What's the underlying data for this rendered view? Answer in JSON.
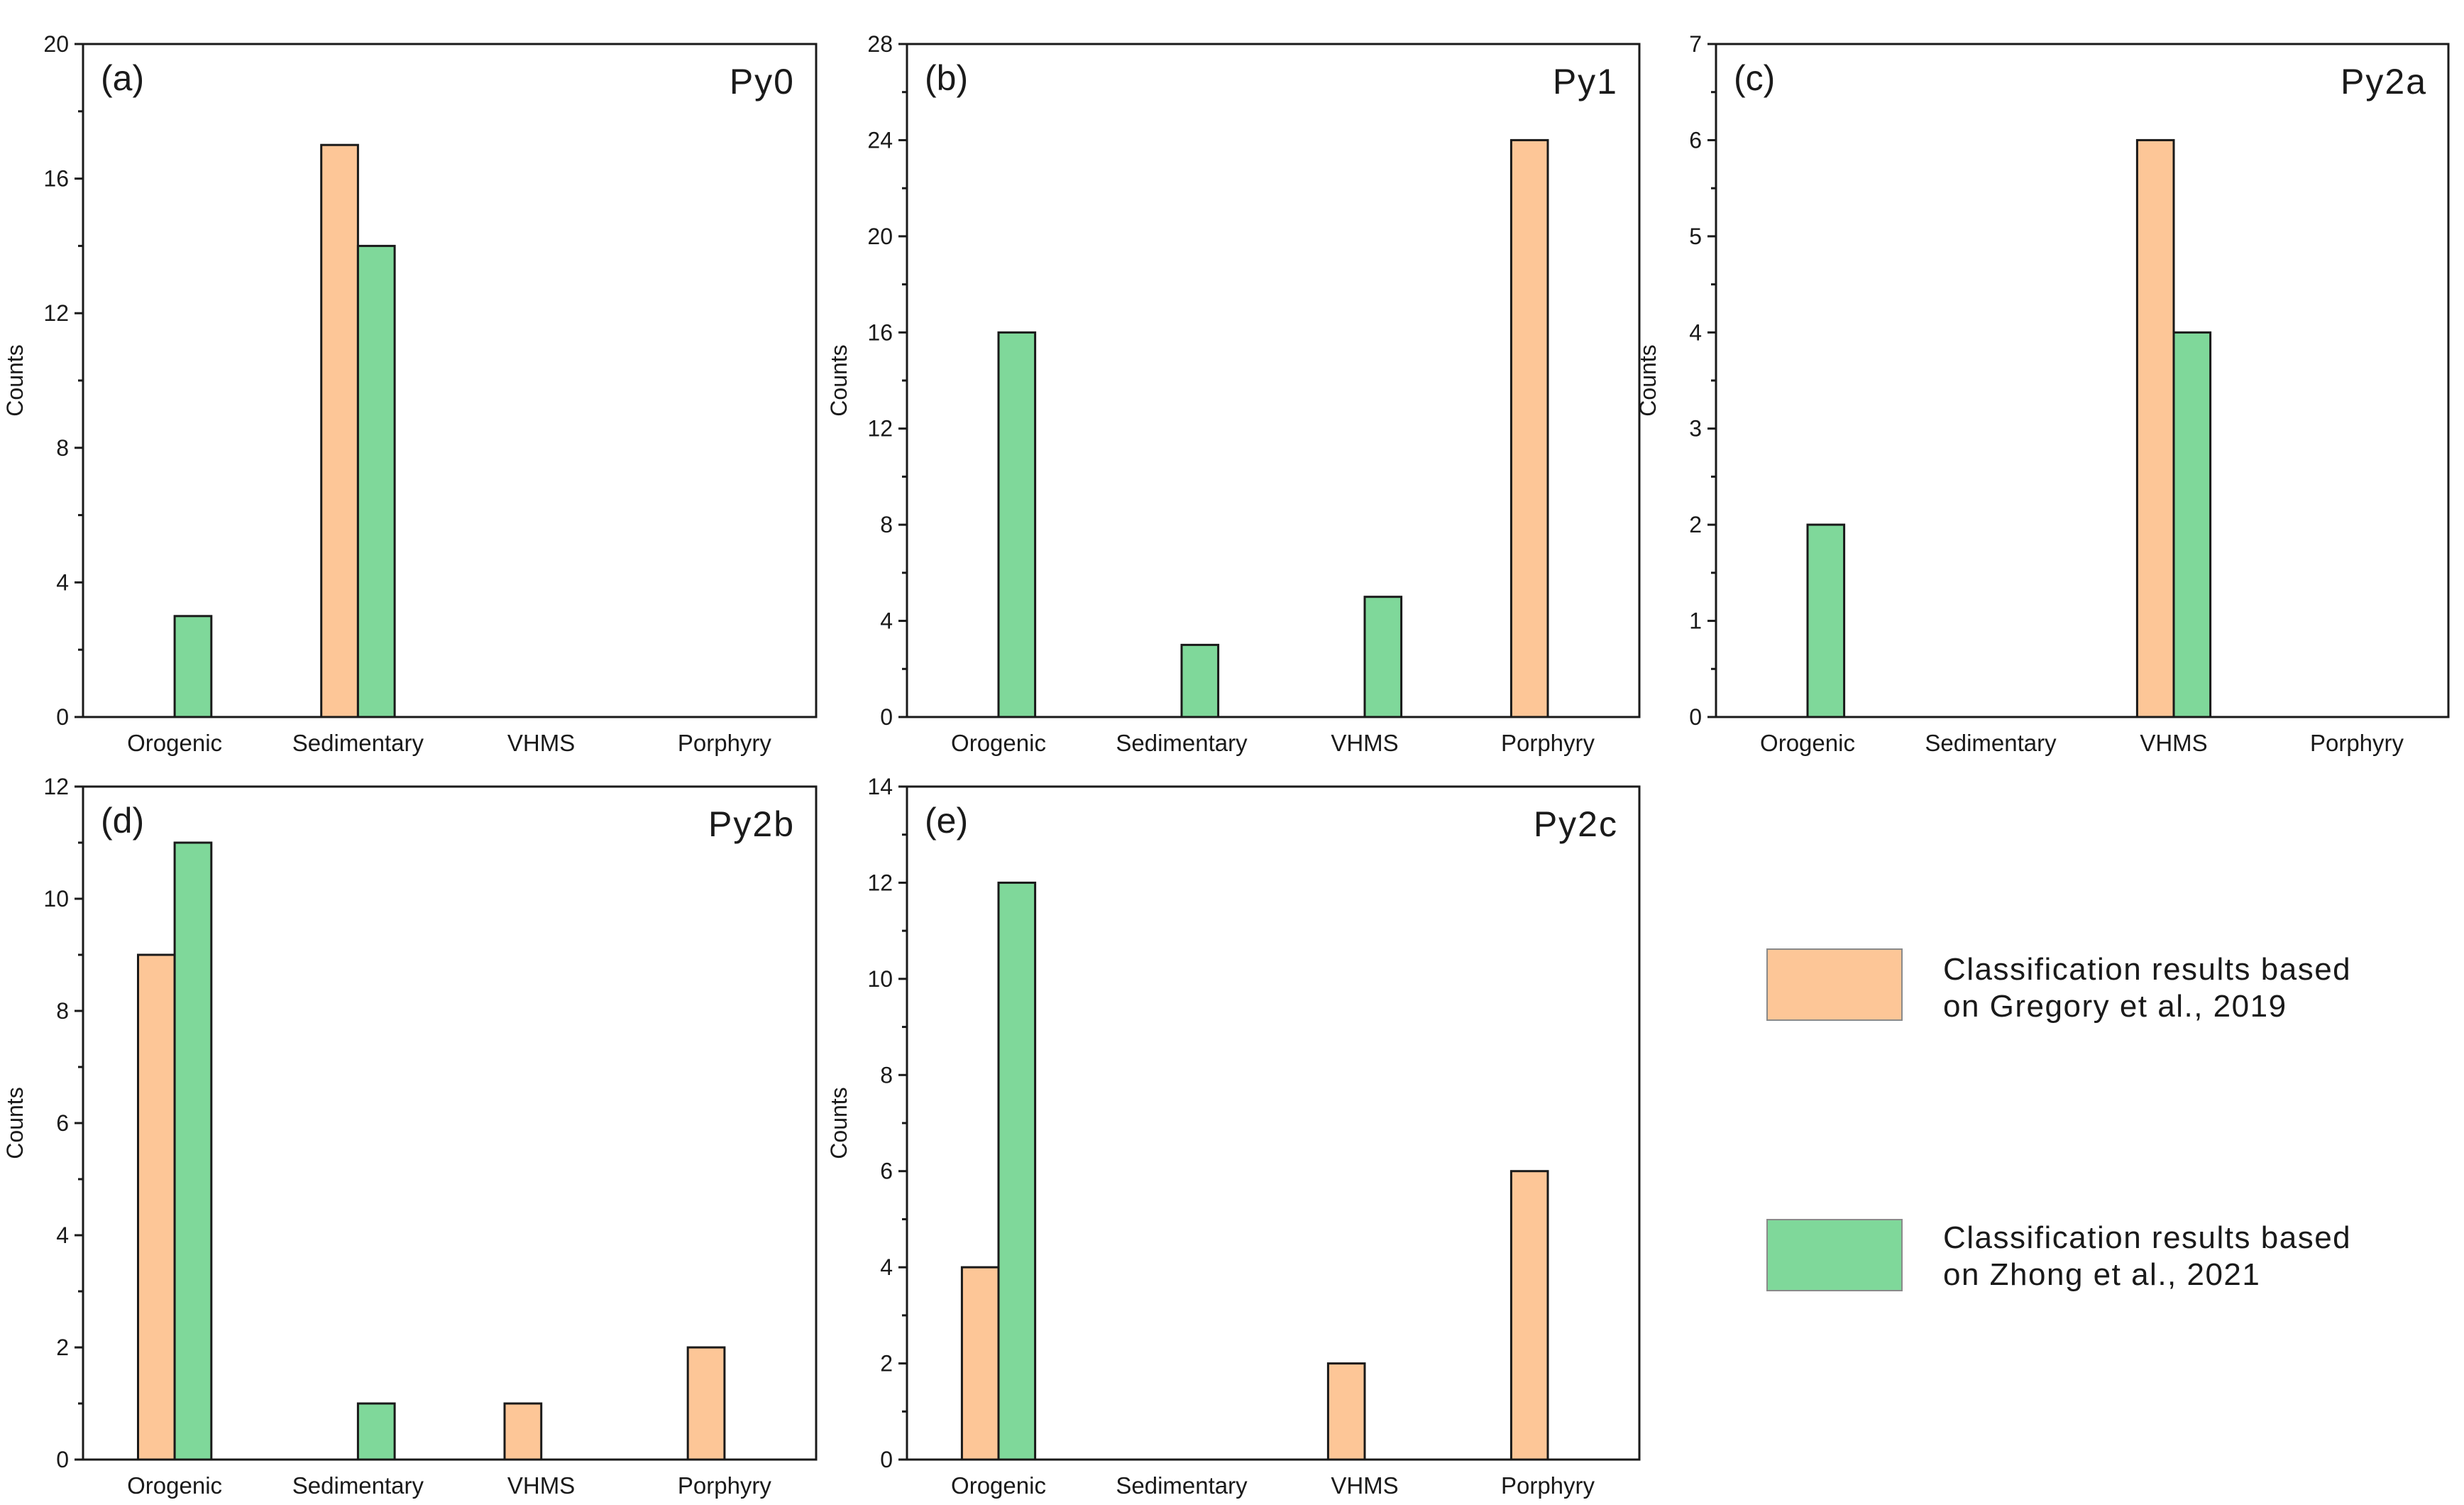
{
  "colors": {
    "gregory": "#FDC697",
    "zhong": "#7FD89A",
    "axis": "#1a1a1a"
  },
  "legend": {
    "items": [
      {
        "series": "gregory",
        "line1": "Classification results based",
        "line2": "on Gregory et al., 2019"
      },
      {
        "series": "zhong",
        "line1": "Classification results based",
        "line2": "on Zhong et al., 2021"
      }
    ]
  },
  "chart_data": [
    {
      "type": "bar",
      "panel_label": "(a)",
      "title": "Py0",
      "ylabel": "Counts",
      "ylim": [
        0,
        20
      ],
      "yticks": [
        0,
        4,
        8,
        12,
        16,
        20
      ],
      "categories": [
        "Orogenic",
        "Sedimentary",
        "VHMS",
        "Porphyry"
      ],
      "series": [
        {
          "name": "Classification results based on Gregory et al., 2019",
          "key": "gregory",
          "values": [
            0,
            17,
            0,
            0
          ]
        },
        {
          "name": "Classification results based on Zhong et al., 2021",
          "key": "zhong",
          "values": [
            3,
            14,
            0,
            0
          ]
        }
      ]
    },
    {
      "type": "bar",
      "panel_label": "(b)",
      "title": "Py1",
      "ylabel": "Counts",
      "ylim": [
        0,
        28
      ],
      "yticks": [
        0,
        4,
        8,
        12,
        16,
        20,
        24,
        28
      ],
      "categories": [
        "Orogenic",
        "Sedimentary",
        "VHMS",
        "Porphyry"
      ],
      "series": [
        {
          "name": "Classification results based on Gregory et al., 2019",
          "key": "gregory",
          "values": [
            0,
            0,
            0,
            24
          ]
        },
        {
          "name": "Classification results based on Zhong et al., 2021",
          "key": "zhong",
          "values": [
            16,
            3,
            5,
            0
          ]
        }
      ]
    },
    {
      "type": "bar",
      "panel_label": "(c)",
      "title": "Py2a",
      "ylabel": "Counts",
      "ylim": [
        0,
        7
      ],
      "yticks": [
        0,
        1,
        2,
        3,
        4,
        5,
        6,
        7
      ],
      "categories": [
        "Orogenic",
        "Sedimentary",
        "VHMS",
        "Porphyry"
      ],
      "series": [
        {
          "name": "Classification results based on Gregory et al., 2019",
          "key": "gregory",
          "values": [
            0,
            0,
            6,
            0
          ]
        },
        {
          "name": "Classification results based on Zhong et al., 2021",
          "key": "zhong",
          "values": [
            2,
            0,
            4,
            0
          ]
        }
      ]
    },
    {
      "type": "bar",
      "panel_label": "(d)",
      "title": "Py2b",
      "ylabel": "Counts",
      "ylim": [
        0,
        12
      ],
      "yticks": [
        0,
        2,
        4,
        6,
        8,
        10,
        12
      ],
      "categories": [
        "Orogenic",
        "Sedimentary",
        "VHMS",
        "Porphyry"
      ],
      "series": [
        {
          "name": "Classification results based on Gregory et al., 2019",
          "key": "gregory",
          "values": [
            9,
            0,
            1,
            2
          ]
        },
        {
          "name": "Classification results based on Zhong et al., 2021",
          "key": "zhong",
          "values": [
            11,
            1,
            0,
            0
          ]
        }
      ]
    },
    {
      "type": "bar",
      "panel_label": "(e)",
      "title": "Py2c",
      "ylabel": "Counts",
      "ylim": [
        0,
        14
      ],
      "yticks": [
        0,
        2,
        4,
        6,
        8,
        10,
        12,
        14
      ],
      "categories": [
        "Orogenic",
        "Sedimentary",
        "VHMS",
        "Porphyry"
      ],
      "series": [
        {
          "name": "Classification results based on Gregory et al., 2019",
          "key": "gregory",
          "values": [
            4,
            0,
            2,
            6
          ]
        },
        {
          "name": "Classification results based on Zhong et al., 2021",
          "key": "zhong",
          "values": [
            12,
            0,
            0,
            0
          ]
        }
      ]
    }
  ]
}
